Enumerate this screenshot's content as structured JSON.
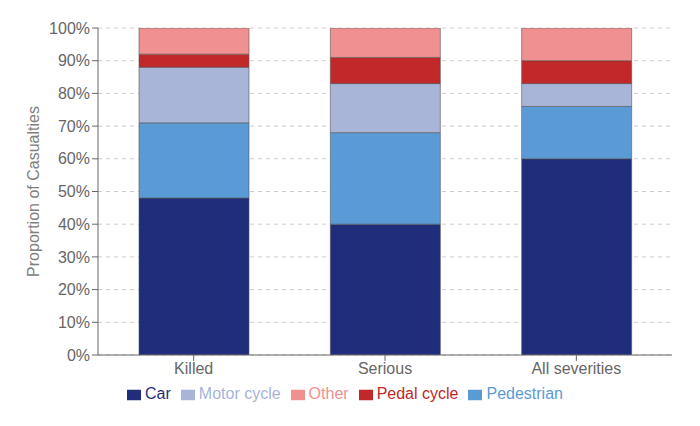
{
  "chart_data": {
    "type": "bar",
    "stacked": true,
    "ylabel": "Proportion of Casualties",
    "categories": [
      "Killed",
      "Serious",
      "All severities"
    ],
    "series": [
      {
        "name": "Car",
        "color": "#1f2d7b",
        "values": [
          48,
          40,
          60
        ]
      },
      {
        "name": "Pedestrian",
        "color": "#5b9bd5",
        "values": [
          23,
          28,
          16
        ]
      },
      {
        "name": "Motor cycle",
        "color": "#a8b4d8",
        "values": [
          17,
          15,
          7
        ]
      },
      {
        "name": "Pedal cycle",
        "color": "#c0282a",
        "values": [
          4,
          8,
          7
        ]
      },
      {
        "name": "Other",
        "color": "#f09090",
        "values": [
          8,
          9,
          10
        ]
      }
    ],
    "ylim": [
      0,
      100
    ],
    "yticks": [
      {
        "value": 0,
        "label": "0%"
      },
      {
        "value": 10,
        "label": "10%"
      },
      {
        "value": 20,
        "label": "20%"
      },
      {
        "value": 30,
        "label": "30%"
      },
      {
        "value": 40,
        "label": "40%"
      },
      {
        "value": 50,
        "label": "50%"
      },
      {
        "value": 60,
        "label": "60%"
      },
      {
        "value": 70,
        "label": "70%"
      },
      {
        "value": 80,
        "label": "80%"
      },
      {
        "value": 90,
        "label": "90%"
      },
      {
        "value": 100,
        "label": "100%"
      }
    ],
    "grid": true,
    "legend": "bottom"
  }
}
